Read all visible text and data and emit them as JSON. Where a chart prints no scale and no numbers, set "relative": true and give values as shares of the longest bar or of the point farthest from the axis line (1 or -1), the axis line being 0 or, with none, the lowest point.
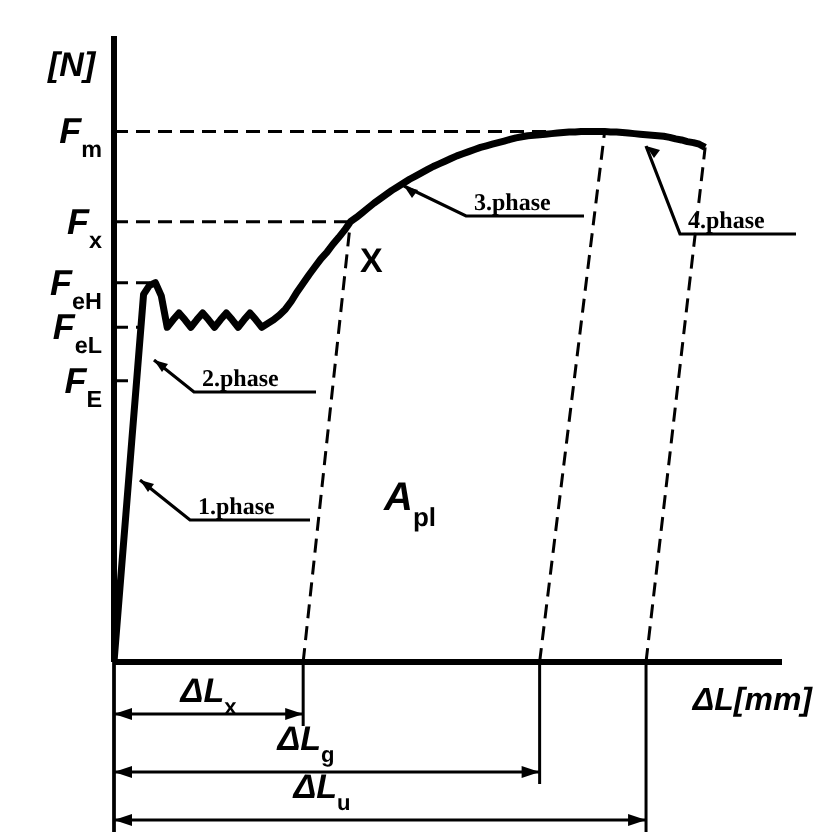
{
  "chart_data": {
    "type": "line",
    "relative": true,
    "xlabel": "ΔL[mm]",
    "ylabel": "[N]",
    "categories": [
      null,
      null,
      null,
      null,
      null,
      null,
      null,
      null,
      null,
      null,
      null,
      null,
      null,
      null,
      null,
      null,
      null,
      null,
      null,
      null,
      null,
      null,
      null,
      null,
      null,
      null,
      null,
      null,
      null,
      null,
      null,
      null,
      null,
      null,
      null,
      null,
      null,
      null,
      null,
      null,
      null,
      null,
      null,
      null,
      null,
      null,
      null,
      null,
      null,
      null,
      null,
      null,
      null,
      null,
      null,
      null,
      null,
      null,
      null,
      null,
      null,
      null,
      null,
      null,
      null,
      null,
      null,
      null,
      null,
      null,
      null,
      null,
      null,
      null,
      null,
      null,
      null,
      null,
      null,
      null,
      null,
      null,
      null,
      null,
      null,
      null,
      null,
      null,
      null,
      null,
      null,
      null,
      null,
      null,
      null,
      null,
      null,
      null,
      null,
      null,
      null,
      null,
      null,
      null,
      null,
      null,
      null,
      null,
      null,
      null,
      null,
      null,
      null,
      null
    ],
    "series": [
      {
        "color": "#000000",
        "line_style": "solid",
        "values": [
          0,
          0.139,
          0.277,
          0.416,
          0.554,
          0.693,
          0.71,
          0.715,
          0.69,
          0.631,
          0.645,
          0.658,
          0.645,
          0.631,
          0.645,
          0.658,
          0.645,
          0.631,
          0.645,
          0.658,
          0.645,
          0.631,
          0.645,
          0.658,
          0.645,
          0.631,
          0.638,
          0.645,
          0.654,
          0.665,
          0.68,
          0.698,
          0.714,
          0.73,
          0.745,
          0.76,
          0.772,
          0.787,
          0.8,
          0.814,
          0.83,
          0.838,
          0.847,
          0.856,
          0.865,
          0.873,
          0.881,
          0.889,
          0.896,
          0.903,
          0.91,
          0.916,
          0.922,
          0.928,
          0.934,
          0.939,
          0.944,
          0.949,
          0.954,
          0.958,
          0.962,
          0.966,
          0.97,
          0.973,
          0.976,
          0.979,
          0.982,
          0.985,
          0.988,
          0.99,
          0.992,
          0.993,
          0.994,
          0.995,
          0.996,
          0.997,
          0.998,
          0.999,
          0.999,
          1,
          1,
          1,
          1,
          1,
          0.999,
          0.999,
          0.998,
          0.997,
          0.996,
          0.995,
          0.994,
          0.993,
          0.992,
          0.991,
          0.989,
          0.986,
          0.984,
          0.981,
          0.979,
          0.976,
          0.97,
          null,
          null,
          null,
          null,
          null,
          null,
          null,
          null,
          null,
          null,
          null,
          null,
          null
        ]
      },
      {
        "color": "#000000",
        "line_style": "dashed",
        "values": [
          null,
          null,
          null,
          null,
          null,
          null,
          null,
          null,
          null,
          null,
          null,
          null,
          null,
          null,
          null,
          null,
          null,
          null,
          null,
          null,
          null,
          null,
          null,
          null,
          null,
          null,
          null,
          null,
          null,
          null,
          null,
          null,
          0,
          null,
          null,
          null,
          null,
          null,
          null,
          null,
          0.83,
          null,
          null,
          null,
          null,
          null,
          null,
          null,
          null,
          null,
          null,
          null,
          null,
          null,
          null,
          null,
          null,
          null,
          null,
          null,
          null,
          null,
          null,
          null,
          null,
          null,
          null,
          null,
          null,
          null,
          null,
          null,
          null,
          null,
          null,
          null,
          null,
          null,
          null,
          null,
          null,
          null,
          null,
          null,
          null,
          null,
          null,
          null,
          null,
          null,
          null,
          null,
          null,
          null,
          null,
          null,
          null,
          null,
          null,
          null,
          null,
          null,
          null,
          null,
          null,
          null,
          null,
          null,
          null,
          null,
          null,
          null,
          null,
          null
        ]
      },
      {
        "color": "#000000",
        "line_style": "dashed",
        "values": [
          null,
          null,
          null,
          null,
          null,
          null,
          null,
          null,
          null,
          null,
          null,
          null,
          null,
          null,
          null,
          null,
          null,
          null,
          null,
          null,
          null,
          null,
          null,
          null,
          null,
          null,
          null,
          null,
          null,
          null,
          null,
          null,
          null,
          null,
          null,
          null,
          null,
          null,
          null,
          null,
          null,
          null,
          null,
          null,
          null,
          null,
          null,
          null,
          null,
          null,
          null,
          null,
          null,
          null,
          null,
          null,
          null,
          null,
          null,
          null,
          null,
          null,
          null,
          null,
          null,
          null,
          null,
          null,
          null,
          null,
          null,
          null,
          0,
          null,
          null,
          null,
          null,
          null,
          null,
          null,
          null,
          null,
          null,
          1,
          null,
          null,
          null,
          null,
          null,
          null,
          null,
          null,
          null,
          null,
          null,
          null,
          null,
          null,
          null,
          null,
          null,
          null,
          null,
          null,
          null,
          null,
          null,
          null,
          null,
          null,
          null,
          null,
          null,
          null
        ]
      },
      {
        "color": "#000000",
        "line_style": "dashed",
        "values": [
          null,
          null,
          null,
          null,
          null,
          null,
          null,
          null,
          null,
          null,
          null,
          null,
          null,
          null,
          null,
          null,
          null,
          null,
          null,
          null,
          null,
          null,
          null,
          null,
          null,
          null,
          null,
          null,
          null,
          null,
          null,
          null,
          null,
          null,
          null,
          null,
          null,
          null,
          null,
          null,
          null,
          null,
          null,
          null,
          null,
          null,
          null,
          null,
          null,
          null,
          null,
          null,
          null,
          null,
          null,
          null,
          null,
          null,
          null,
          null,
          null,
          null,
          null,
          null,
          null,
          null,
          null,
          null,
          null,
          null,
          null,
          null,
          null,
          null,
          null,
          null,
          null,
          null,
          null,
          null,
          null,
          null,
          null,
          null,
          null,
          null,
          null,
          null,
          null,
          null,
          0,
          null,
          null,
          null,
          null,
          null,
          null,
          null,
          null,
          null,
          0.97,
          null,
          null,
          null,
          null,
          null,
          null,
          null,
          null,
          null,
          null,
          null,
          null,
          null
        ]
      }
    ],
    "ref_lines": [
      {
        "axis": "y",
        "value": 1,
        "label": "F$_{m}$",
        "line_style": "dashed"
      },
      {
        "axis": "y",
        "value": 0.83,
        "label": "F$_{x}$",
        "line_style": "dashed"
      },
      {
        "axis": "y",
        "value": 0.715,
        "label": "F$_{eH}$",
        "line_style": "dashed"
      },
      {
        "axis": "y",
        "value": 0.631,
        "label": "F$_{eL}$",
        "line_style": "dashed"
      },
      {
        "axis": "y",
        "value": 0.53,
        "label": "F$_{E}$",
        "line_style": "dashed"
      }
    ],
    "annotations": [
      "1.phase",
      "2.phase",
      "3.phase",
      "4.phase",
      "X",
      "A$_{pl}$",
      "ΔL$_{x}$",
      "ΔL$_{g}$",
      "ΔL$_{u}$"
    ]
  }
}
